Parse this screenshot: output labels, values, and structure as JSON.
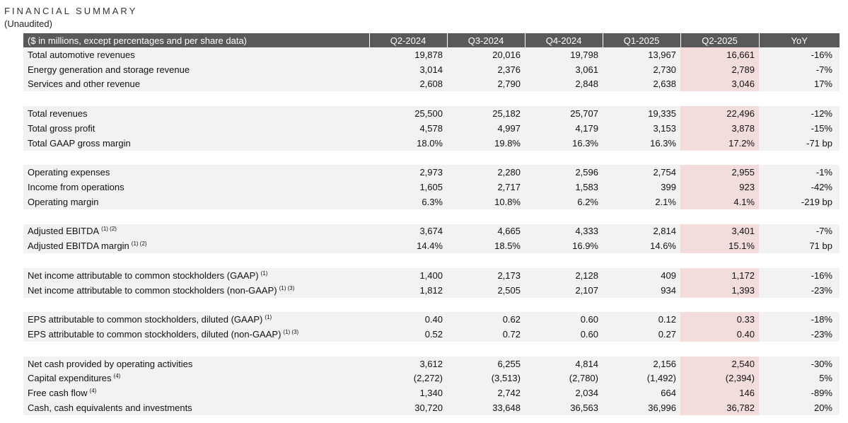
{
  "title": "FINANCIAL SUMMARY",
  "subtitle": "(Unaudited)",
  "header": {
    "label": "($ in millions, except percentages and per share data)",
    "periods": [
      "Q2-2024",
      "Q3-2024",
      "Q4-2024",
      "Q1-2025",
      "Q2-2025"
    ],
    "yoy": "YoY"
  },
  "groups": [
    {
      "rows": [
        {
          "label": "Total automotive revenues",
          "note": "",
          "values": [
            "19,878",
            "20,016",
            "19,798",
            "13,967",
            "16,661"
          ],
          "yoy": "-16%"
        },
        {
          "label": "Energy generation and storage revenue",
          "note": "",
          "values": [
            "3,014",
            "2,376",
            "3,061",
            "2,730",
            "2,789"
          ],
          "yoy": "-7%"
        },
        {
          "label": "Services and other revenue",
          "note": "",
          "values": [
            "2,608",
            "2,790",
            "2,848",
            "2,638",
            "3,046"
          ],
          "yoy": "17%"
        }
      ]
    },
    {
      "rows": [
        {
          "label": "Total revenues",
          "note": "",
          "values": [
            "25,500",
            "25,182",
            "25,707",
            "19,335",
            "22,496"
          ],
          "yoy": "-12%"
        },
        {
          "label": "Total gross profit",
          "note": "",
          "values": [
            "4,578",
            "4,997",
            "4,179",
            "3,153",
            "3,878"
          ],
          "yoy": "-15%"
        },
        {
          "label": "Total GAAP gross margin",
          "note": "",
          "values": [
            "18.0%",
            "19.8%",
            "16.3%",
            "16.3%",
            "17.2%"
          ],
          "yoy": "-71 bp"
        }
      ]
    },
    {
      "rows": [
        {
          "label": "Operating expenses",
          "note": "",
          "values": [
            "2,973",
            "2,280",
            "2,596",
            "2,754",
            "2,955"
          ],
          "yoy": "-1%"
        },
        {
          "label": "Income from operations",
          "note": "",
          "values": [
            "1,605",
            "2,717",
            "1,583",
            "399",
            "923"
          ],
          "yoy": "-42%"
        },
        {
          "label": "Operating margin",
          "note": "",
          "values": [
            "6.3%",
            "10.8%",
            "6.2%",
            "2.1%",
            "4.1%"
          ],
          "yoy": "-219 bp"
        }
      ]
    },
    {
      "rows": [
        {
          "label": "Adjusted EBITDA",
          "note": "(1) (2)",
          "values": [
            "3,674",
            "4,665",
            "4,333",
            "2,814",
            "3,401"
          ],
          "yoy": "-7%"
        },
        {
          "label": "Adjusted EBITDA margin",
          "note": "(1) (2)",
          "values": [
            "14.4%",
            "18.5%",
            "16.9%",
            "14.6%",
            "15.1%"
          ],
          "yoy": "71 bp"
        }
      ]
    },
    {
      "rows": [
        {
          "label": "Net income attributable to common stockholders (GAAP)",
          "note": "(1)",
          "values": [
            "1,400",
            "2,173",
            "2,128",
            "409",
            "1,172"
          ],
          "yoy": "-16%"
        },
        {
          "label": "Net income attributable to common stockholders (non-GAAP)",
          "note": "(1) (3)",
          "values": [
            "1,812",
            "2,505",
            "2,107",
            "934",
            "1,393"
          ],
          "yoy": "-23%"
        }
      ]
    },
    {
      "rows": [
        {
          "label": "EPS attributable to common stockholders, diluted (GAAP)",
          "note": "(1)",
          "values": [
            "0.40",
            "0.62",
            "0.60",
            "0.12",
            "0.33"
          ],
          "yoy": "-18%"
        },
        {
          "label": "EPS attributable to common stockholders, diluted (non-GAAP)",
          "note": "(1) (3)",
          "values": [
            "0.52",
            "0.72",
            "0.60",
            "0.27",
            "0.40"
          ],
          "yoy": "-23%"
        }
      ]
    },
    {
      "rows": [
        {
          "label": "Net cash provided by operating activities",
          "note": "",
          "values": [
            "3,612",
            "6,255",
            "4,814",
            "2,156",
            "2,540"
          ],
          "yoy": "-30%"
        },
        {
          "label": "Capital expenditures",
          "note": "(4)",
          "values": [
            "(2,272)",
            "(3,513)",
            "(2,780)",
            "(1,492)",
            "(2,394)"
          ],
          "yoy": "5%"
        },
        {
          "label": "Free cash flow",
          "note": "(4)",
          "values": [
            "1,340",
            "2,742",
            "2,034",
            "664",
            "146"
          ],
          "yoy": "-89%"
        },
        {
          "label": "Cash, cash equivalents and investments",
          "note": "",
          "values": [
            "30,720",
            "33,648",
            "36,563",
            "36,996",
            "36,782"
          ],
          "yoy": "20%"
        }
      ]
    }
  ],
  "colors": {
    "header_bg": "#595959",
    "row_shade": "#f2f2f2",
    "highlight": "#f3dcdc"
  }
}
